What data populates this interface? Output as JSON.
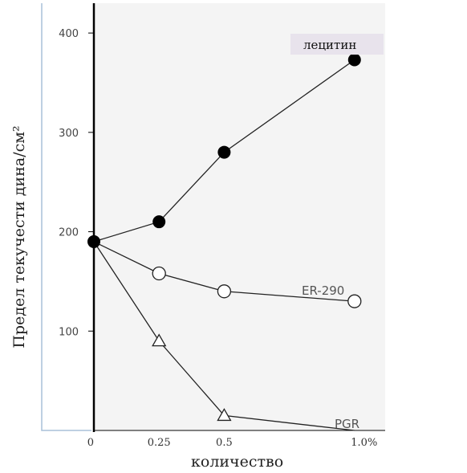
{
  "chart_data": {
    "type": "line",
    "ylabel": "Предел текучести дина/см²",
    "xlabel": "количество",
    "x": [
      0,
      0.25,
      0.5,
      1.0
    ],
    "x_tick_labels": [
      "0",
      "0.25",
      "0.5",
      "1.0%"
    ],
    "y_ticks": [
      100,
      200,
      300,
      400
    ],
    "xlim": [
      0,
      1.25
    ],
    "ylim": [
      0,
      430
    ],
    "grid": false,
    "series": [
      {
        "name": "лецитин",
        "marker": "filled-circle",
        "values": [
          190,
          210,
          280,
          373
        ]
      },
      {
        "name": "ER-290",
        "marker": "open-circle",
        "values": [
          190,
          158,
          140,
          130
        ]
      },
      {
        "name": "PGR",
        "marker": "open-triangle",
        "values": [
          190,
          90,
          15,
          0
        ]
      }
    ]
  }
}
